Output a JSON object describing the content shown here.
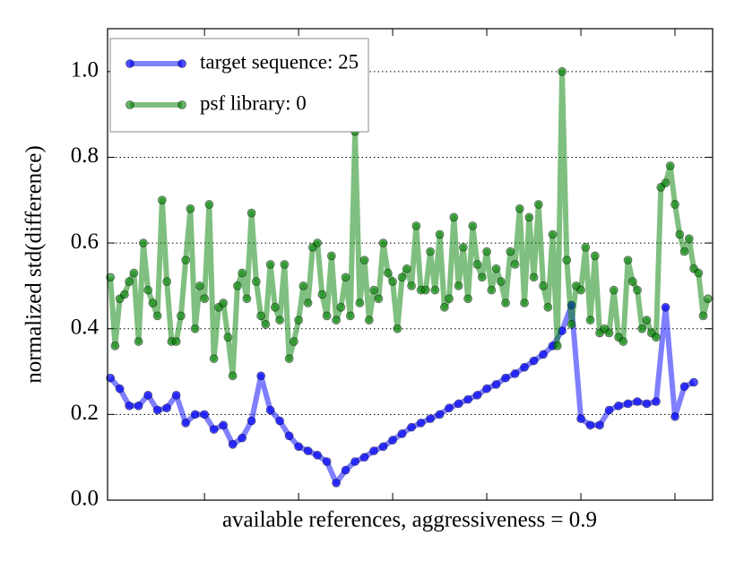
{
  "chart_data": {
    "type": "line",
    "xlabel": "available references, aggressiveness = 0.9",
    "ylabel": "normalized std(difference)",
    "xlim": [
      -0.3,
      64
    ],
    "xticks": [
      10,
      20,
      30,
      40,
      50,
      60
    ],
    "ylim": [
      0,
      1.1
    ],
    "yticks": [
      {
        "value": 0,
        "label": "0.0"
      },
      0.2,
      0.4,
      0.6,
      0.8,
      {
        "value": 1,
        "label": "1.0"
      }
    ],
    "grid": true,
    "legend": "upper left",
    "series": [
      {
        "name": "target sequence: 25",
        "color": "#0000ff",
        "x": [
          0,
          1,
          2,
          3,
          4,
          5,
          6,
          7,
          8,
          9,
          10,
          11,
          12,
          13,
          14,
          15,
          16,
          17,
          18,
          19,
          20,
          21,
          22,
          23,
          24,
          25,
          26,
          27,
          28,
          29,
          30,
          31,
          32,
          33,
          34,
          35,
          36,
          37,
          38,
          39,
          40,
          41,
          42,
          43,
          44,
          45,
          46,
          47,
          48,
          49,
          50,
          51,
          52,
          53,
          54,
          55,
          56,
          57,
          58,
          59,
          60,
          61,
          62
        ],
        "values": [
          0.285,
          0.26,
          0.22,
          0.22,
          0.245,
          0.21,
          0.215,
          0.245,
          0.18,
          0.2,
          0.2,
          0.165,
          0.175,
          0.13,
          0.145,
          0.185,
          0.29,
          0.21,
          0.185,
          0.15,
          0.125,
          0.115,
          0.105,
          0.09,
          0.04,
          0.07,
          0.09,
          0.1,
          0.115,
          0.125,
          0.14,
          0.155,
          0.17,
          0.18,
          0.19,
          0.2,
          0.215,
          0.225,
          0.235,
          0.245,
          0.26,
          0.27,
          0.285,
          0.295,
          0.31,
          0.325,
          0.34,
          0.36,
          0.395,
          0.455,
          0.19,
          0.175,
          0.175,
          0.21,
          0.22,
          0.225,
          0.23,
          0.225,
          0.23,
          0.45,
          0.195,
          0.265,
          0.275
        ]
      },
      {
        "name": "psf library: 0",
        "color": "#008000",
        "x": [
          0,
          0.5,
          1,
          1.5,
          2,
          2.5,
          3,
          3.5,
          4,
          4.5,
          5,
          5.5,
          6,
          6.5,
          7,
          7.5,
          8,
          8.5,
          9,
          9.5,
          10,
          10.5,
          11,
          11.5,
          12,
          12.5,
          13,
          13.5,
          14,
          14.5,
          15,
          15.5,
          16,
          16.5,
          17,
          17.5,
          18,
          18.5,
          19,
          19.5,
          20,
          20.5,
          21,
          21.5,
          22,
          22.5,
          23,
          23.5,
          24,
          24.5,
          25,
          25.5,
          26,
          26.5,
          27,
          27.5,
          28,
          28.5,
          29,
          29.5,
          30,
          30.5,
          31,
          31.5,
          32,
          32.5,
          33,
          33.5,
          34,
          34.5,
          35,
          35.5,
          36,
          36.5,
          37,
          37.5,
          38,
          38.5,
          39,
          39.5,
          40,
          40.5,
          41,
          41.5,
          42,
          42.5,
          43,
          43.5,
          44,
          44.5,
          45,
          45.5,
          46,
          46.5,
          47,
          47.5,
          48,
          48.5,
          49,
          49.5,
          50,
          50.5,
          51,
          51.5,
          52,
          52.5,
          53,
          53.5,
          54,
          54.5,
          55,
          55.5,
          56,
          56.5,
          57,
          57.5,
          58,
          58.5,
          59,
          59.5,
          60,
          60.5,
          61,
          61.5,
          62,
          62.5,
          63,
          63.5
        ],
        "values": [
          0.52,
          0.36,
          0.47,
          0.48,
          0.51,
          0.53,
          0.37,
          0.6,
          0.49,
          0.46,
          0.43,
          0.7,
          0.51,
          0.37,
          0.37,
          0.43,
          0.56,
          0.68,
          0.4,
          0.5,
          0.47,
          0.69,
          0.33,
          0.45,
          0.46,
          0.38,
          0.29,
          0.5,
          0.53,
          0.47,
          0.67,
          0.51,
          0.43,
          0.41,
          0.55,
          0.45,
          0.42,
          0.55,
          0.33,
          0.37,
          0.42,
          0.5,
          0.46,
          0.59,
          0.6,
          0.48,
          0.43,
          0.57,
          0.42,
          0.45,
          0.52,
          0.43,
          0.86,
          0.46,
          0.56,
          0.42,
          0.49,
          0.47,
          0.6,
          0.53,
          0.51,
          0.4,
          0.52,
          0.54,
          0.5,
          0.64,
          0.49,
          0.49,
          0.58,
          0.49,
          0.62,
          0.45,
          0.47,
          0.66,
          0.5,
          0.59,
          0.47,
          0.64,
          0.55,
          0.52,
          0.58,
          0.49,
          0.54,
          0.51,
          0.46,
          0.58,
          0.55,
          0.68,
          0.46,
          0.66,
          0.52,
          0.69,
          0.5,
          0.45,
          0.62,
          0.36,
          1.0,
          0.56,
          0.41,
          0.5,
          0.49,
          0.59,
          0.42,
          0.57,
          0.39,
          0.4,
          0.39,
          0.49,
          0.38,
          0.37,
          0.56,
          0.51,
          0.49,
          0.4,
          0.42,
          0.39,
          0.38,
          0.73,
          0.74,
          0.78,
          0.69,
          0.62,
          0.58,
          0.61,
          0.54,
          0.53,
          0.43,
          0.47
        ]
      }
    ]
  }
}
